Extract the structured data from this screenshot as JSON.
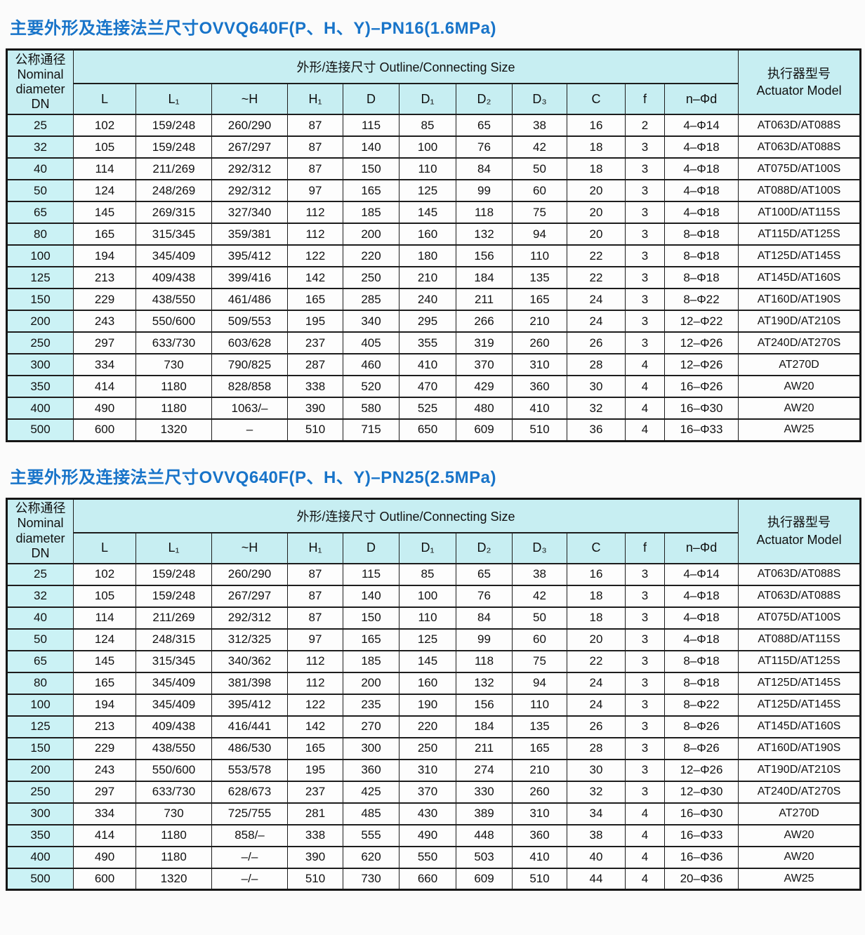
{
  "colors": {
    "title_blue": "#1874c9",
    "header_bg": "#c7eef2",
    "dn_cell_bg": "#cbf2f5",
    "border": "#1d1d1d",
    "page_bg": "#fbfbfb"
  },
  "sections": [
    {
      "title": "主要外形及连接法兰尺寸OVVQ640F(P、H、Y)–PN16(1.6MPa)",
      "table": {
        "dn_header": "公称通径\nNominal\ndiameter\nDN",
        "outline_header": "外形/连接尺寸 Outline/Connecting Size",
        "actuator_header": "执行器型号\nActuator Model",
        "columns": [
          "L",
          "L₁",
          "~H",
          "H₁",
          "D",
          "D₁",
          "D₂",
          "D₃",
          "C",
          "f",
          "n–Φd"
        ],
        "rows": [
          [
            "25",
            "102",
            "159/248",
            "260/290",
            "87",
            "115",
            "85",
            "65",
            "38",
            "16",
            "2",
            "4–Φ14",
            "AT063D/AT088S"
          ],
          [
            "32",
            "105",
            "159/248",
            "267/297",
            "87",
            "140",
            "100",
            "76",
            "42",
            "18",
            "3",
            "4–Φ18",
            "AT063D/AT088S"
          ],
          [
            "40",
            "114",
            "211/269",
            "292/312",
            "87",
            "150",
            "110",
            "84",
            "50",
            "18",
            "3",
            "4–Φ18",
            "AT075D/AT100S"
          ],
          [
            "50",
            "124",
            "248/269",
            "292/312",
            "97",
            "165",
            "125",
            "99",
            "60",
            "20",
            "3",
            "4–Φ18",
            "AT088D/AT100S"
          ],
          [
            "65",
            "145",
            "269/315",
            "327/340",
            "112",
            "185",
            "145",
            "118",
            "75",
            "20",
            "3",
            "4–Φ18",
            "AT100D/AT115S"
          ],
          [
            "80",
            "165",
            "315/345",
            "359/381",
            "112",
            "200",
            "160",
            "132",
            "94",
            "20",
            "3",
            "8–Φ18",
            "AT115D/AT125S"
          ],
          [
            "100",
            "194",
            "345/409",
            "395/412",
            "122",
            "220",
            "180",
            "156",
            "110",
            "22",
            "3",
            "8–Φ18",
            "AT125D/AT145S"
          ],
          [
            "125",
            "213",
            "409/438",
            "399/416",
            "142",
            "250",
            "210",
            "184",
            "135",
            "22",
            "3",
            "8–Φ18",
            "AT145D/AT160S"
          ],
          [
            "150",
            "229",
            "438/550",
            "461/486",
            "165",
            "285",
            "240",
            "211",
            "165",
            "24",
            "3",
            "8–Φ22",
            "AT160D/AT190S"
          ],
          [
            "200",
            "243",
            "550/600",
            "509/553",
            "195",
            "340",
            "295",
            "266",
            "210",
            "24",
            "3",
            "12–Φ22",
            "AT190D/AT210S"
          ],
          [
            "250",
            "297",
            "633/730",
            "603/628",
            "237",
            "405",
            "355",
            "319",
            "260",
            "26",
            "3",
            "12–Φ26",
            "AT240D/AT270S"
          ],
          [
            "300",
            "334",
            "730",
            "790/825",
            "287",
            "460",
            "410",
            "370",
            "310",
            "28",
            "4",
            "12–Φ26",
            "AT270D"
          ],
          [
            "350",
            "414",
            "1180",
            "828/858",
            "338",
            "520",
            "470",
            "429",
            "360",
            "30",
            "4",
            "16–Φ26",
            "AW20"
          ],
          [
            "400",
            "490",
            "1180",
            "1063/–",
            "390",
            "580",
            "525",
            "480",
            "410",
            "32",
            "4",
            "16–Φ30",
            "AW20"
          ],
          [
            "500",
            "600",
            "1320",
            "–",
            "510",
            "715",
            "650",
            "609",
            "510",
            "36",
            "4",
            "16–Φ33",
            "AW25"
          ]
        ]
      }
    },
    {
      "title": "主要外形及连接法兰尺寸OVVQ640F(P、H、Y)–PN25(2.5MPa)",
      "table": {
        "dn_header": "公称通径\nNominal\ndiameter\nDN",
        "outline_header": "外形/连接尺寸 Outline/Connecting Size",
        "actuator_header": "执行器型号\nActuator Model",
        "columns": [
          "L",
          "L₁",
          "~H",
          "H₁",
          "D",
          "D₁",
          "D₂",
          "D₃",
          "C",
          "f",
          "n–Φd"
        ],
        "rows": [
          [
            "25",
            "102",
            "159/248",
            "260/290",
            "87",
            "115",
            "85",
            "65",
            "38",
            "16",
            "3",
            "4–Φ14",
            "AT063D/AT088S"
          ],
          [
            "32",
            "105",
            "159/248",
            "267/297",
            "87",
            "140",
            "100",
            "76",
            "42",
            "18",
            "3",
            "4–Φ18",
            "AT063D/AT088S"
          ],
          [
            "40",
            "114",
            "211/269",
            "292/312",
            "87",
            "150",
            "110",
            "84",
            "50",
            "18",
            "3",
            "4–Φ18",
            "AT075D/AT100S"
          ],
          [
            "50",
            "124",
            "248/315",
            "312/325",
            "97",
            "165",
            "125",
            "99",
            "60",
            "20",
            "3",
            "4–Φ18",
            "AT088D/AT115S"
          ],
          [
            "65",
            "145",
            "315/345",
            "340/362",
            "112",
            "185",
            "145",
            "118",
            "75",
            "22",
            "3",
            "8–Φ18",
            "AT115D/AT125S"
          ],
          [
            "80",
            "165",
            "345/409",
            "381/398",
            "112",
            "200",
            "160",
            "132",
            "94",
            "24",
            "3",
            "8–Φ18",
            "AT125D/AT145S"
          ],
          [
            "100",
            "194",
            "345/409",
            "395/412",
            "122",
            "235",
            "190",
            "156",
            "110",
            "24",
            "3",
            "8–Φ22",
            "AT125D/AT145S"
          ],
          [
            "125",
            "213",
            "409/438",
            "416/441",
            "142",
            "270",
            "220",
            "184",
            "135",
            "26",
            "3",
            "8–Φ26",
            "AT145D/AT160S"
          ],
          [
            "150",
            "229",
            "438/550",
            "486/530",
            "165",
            "300",
            "250",
            "211",
            "165",
            "28",
            "3",
            "8–Φ26",
            "AT160D/AT190S"
          ],
          [
            "200",
            "243",
            "550/600",
            "553/578",
            "195",
            "360",
            "310",
            "274",
            "210",
            "30",
            "3",
            "12–Φ26",
            "AT190D/AT210S"
          ],
          [
            "250",
            "297",
            "633/730",
            "628/673",
            "237",
            "425",
            "370",
            "330",
            "260",
            "32",
            "3",
            "12–Φ30",
            "AT240D/AT270S"
          ],
          [
            "300",
            "334",
            "730",
            "725/755",
            "281",
            "485",
            "430",
            "389",
            "310",
            "34",
            "4",
            "16–Φ30",
            "AT270D"
          ],
          [
            "350",
            "414",
            "1180",
            "858/–",
            "338",
            "555",
            "490",
            "448",
            "360",
            "38",
            "4",
            "16–Φ33",
            "AW20"
          ],
          [
            "400",
            "490",
            "1180",
            "–/–",
            "390",
            "620",
            "550",
            "503",
            "410",
            "40",
            "4",
            "16–Φ36",
            "AW20"
          ],
          [
            "500",
            "600",
            "1320",
            "–/–",
            "510",
            "730",
            "660",
            "609",
            "510",
            "44",
            "4",
            "20–Φ36",
            "AW25"
          ]
        ]
      }
    }
  ]
}
